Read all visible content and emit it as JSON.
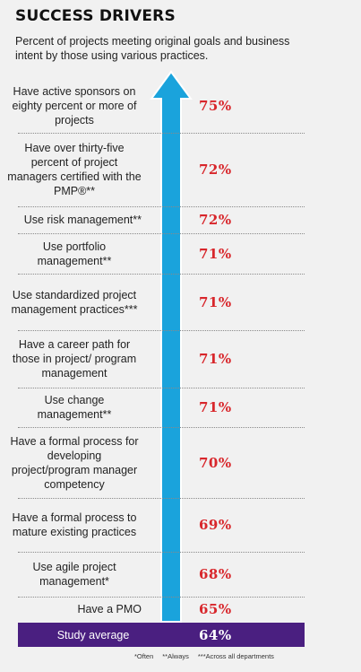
{
  "title": "SUCCESS DRIVERS",
  "subtitle": "Percent of projects meeting original goals and business intent by those using various practices.",
  "chart_data": {
    "type": "bar",
    "categories": [
      "Have active sponsors on eighty percent or more of projects",
      "Have over thirty-five percent of project managers certified with the PMP®**",
      "Use risk management**",
      "Use portfolio management**",
      "Use standardized project management practices***",
      "Have a career path for those in project/ program management",
      "Use change management**",
      "Have a formal process for developing project/program manager competency",
      "Have a formal process to mature existing practices",
      "Use agile project management*",
      "Have a PMO"
    ],
    "values": [
      75,
      72,
      72,
      71,
      71,
      71,
      71,
      70,
      69,
      68,
      65
    ],
    "value_labels": [
      "75%",
      "72%",
      "72%",
      "71%",
      "71%",
      "71%",
      "71%",
      "70%",
      "69%",
      "68%",
      "65%"
    ],
    "average": {
      "label": "Study average",
      "value": 64,
      "value_label": "64%"
    },
    "unit": "%"
  },
  "footnotes": [
    "*Often",
    "**Always",
    "***Across all departments"
  ],
  "colors": {
    "arrow": "#1aa3dc",
    "value_text": "#d8262b",
    "average_bar": "#4a1f80"
  }
}
